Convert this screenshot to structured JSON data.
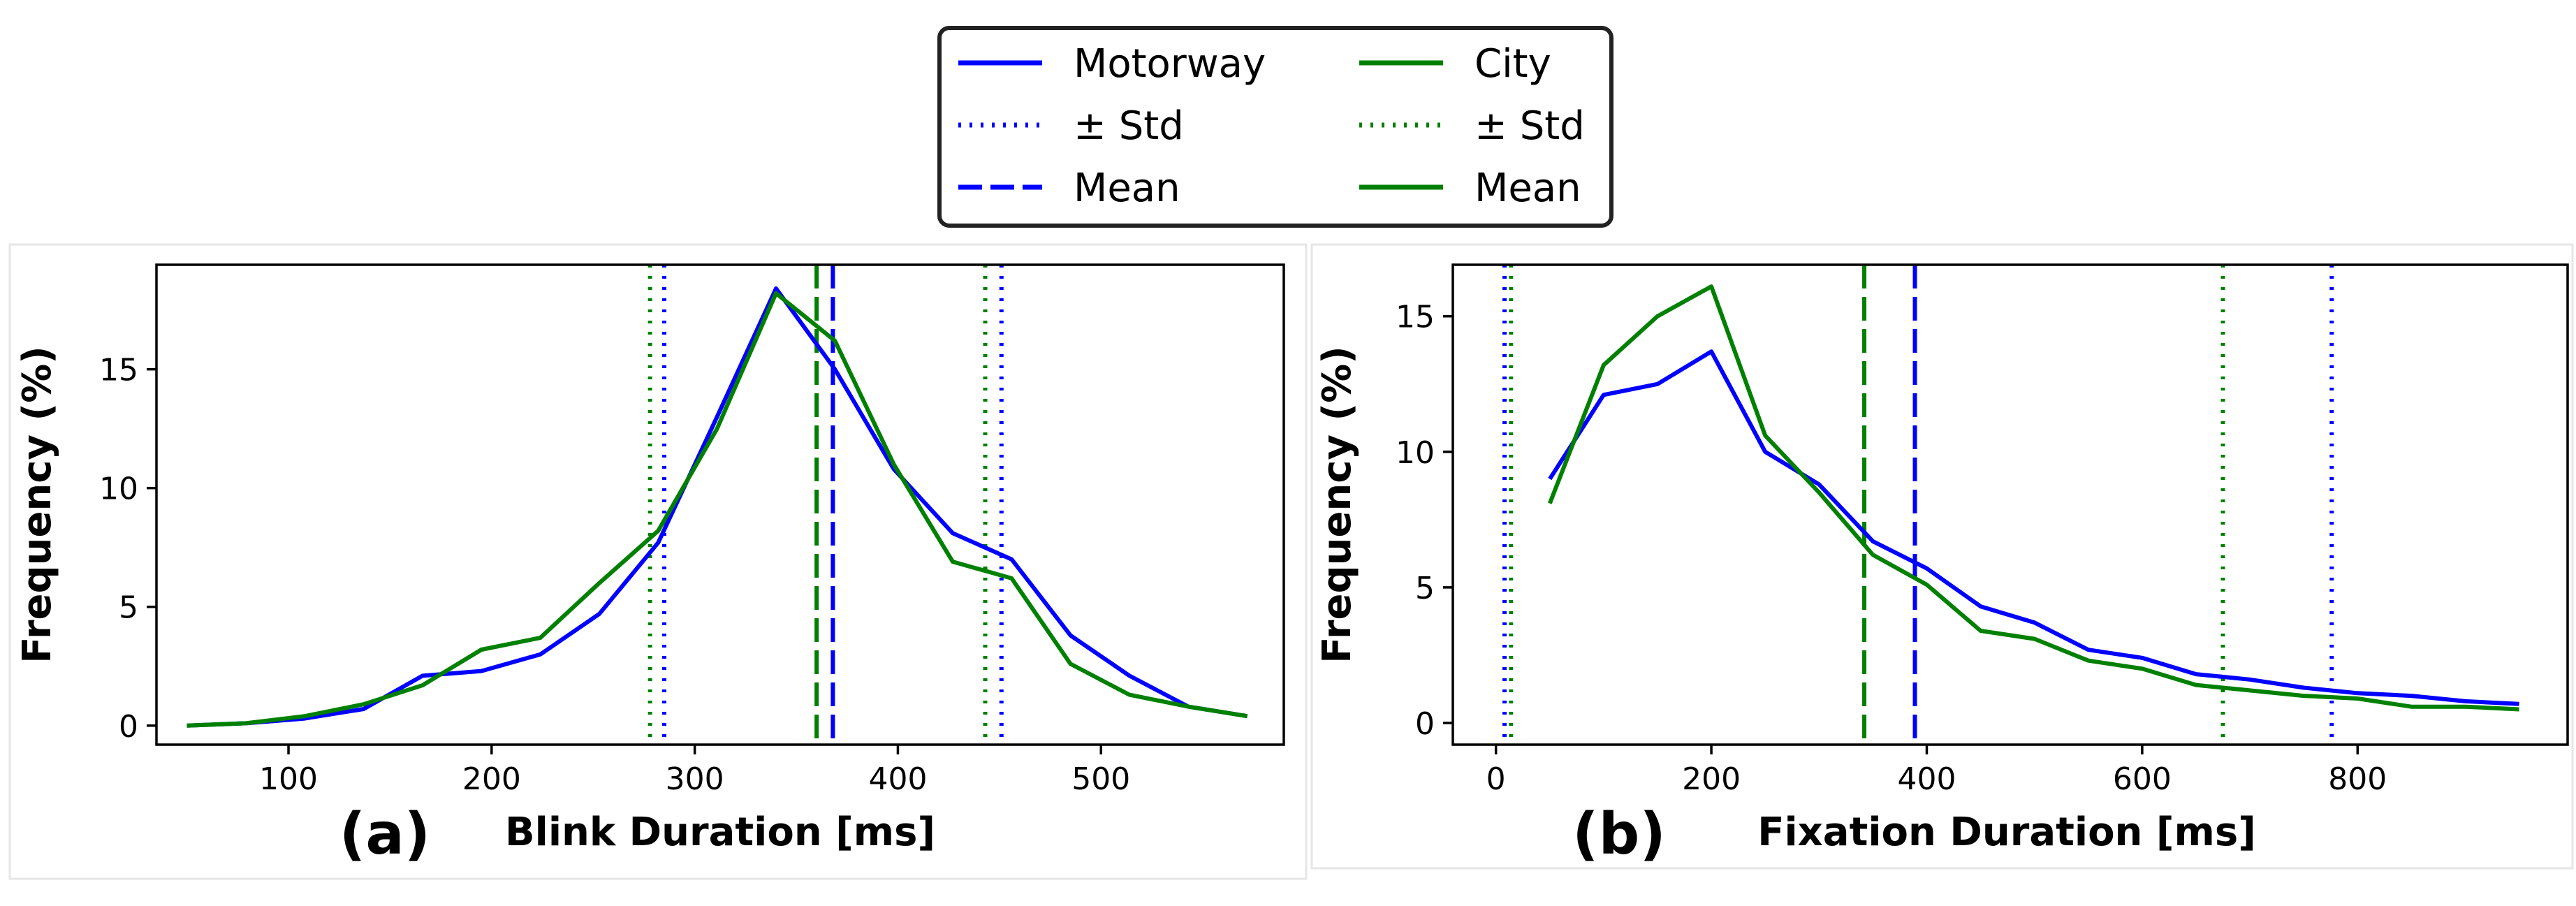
{
  "legend": {
    "entries": [
      {
        "label": "Motorway",
        "color": "#0000ff",
        "style": "solid"
      },
      {
        "label": "City",
        "color": "#008000",
        "style": "solid"
      },
      {
        "label": "± Std",
        "color": "#0000ff",
        "style": "dotted"
      },
      {
        "label": "± Std",
        "color": "#008000",
        "style": "dotted"
      },
      {
        "label": "Mean",
        "color": "#0000ff",
        "style": "dashed"
      },
      {
        "label": "Mean",
        "color": "#008000",
        "style": "solid"
      }
    ]
  },
  "chart_data": [
    {
      "type": "line",
      "panel_label": "(a)",
      "xlabel": "Blink Duration [ms]",
      "ylabel": "Frequency (%)",
      "xlim": [
        35,
        590
      ],
      "ylim": [
        -0.8,
        19.4
      ],
      "xticks": [
        100,
        200,
        300,
        400,
        500
      ],
      "yticks": [
        0,
        5,
        10,
        15
      ],
      "series": [
        {
          "name": "Motorway",
          "color": "#0000ff",
          "x": [
            50,
            79,
            108,
            137,
            166,
            195,
            224,
            253,
            282,
            311,
            340,
            369,
            398,
            427,
            456,
            485,
            514,
            543,
            572
          ],
          "y": [
            0.0,
            0.1,
            0.3,
            0.7,
            2.1,
            2.3,
            3.0,
            4.7,
            7.7,
            13.0,
            18.4,
            15.0,
            10.8,
            8.1,
            7.0,
            3.8,
            2.1,
            0.8,
            0.4
          ]
        },
        {
          "name": "City",
          "color": "#008000",
          "x": [
            50,
            79,
            108,
            137,
            166,
            195,
            224,
            253,
            282,
            311,
            340,
            369,
            398,
            427,
            456,
            485,
            514,
            543,
            572
          ],
          "y": [
            0.0,
            0.1,
            0.4,
            0.9,
            1.7,
            3.2,
            3.7,
            6.0,
            8.2,
            12.5,
            18.2,
            16.2,
            11.0,
            6.9,
            6.2,
            2.6,
            1.3,
            0.8,
            0.4
          ]
        }
      ],
      "vlines": [
        {
          "x": 368,
          "color": "#0000ff",
          "style": "dashed"
        },
        {
          "x": 285,
          "color": "#0000ff",
          "style": "dotted"
        },
        {
          "x": 451,
          "color": "#0000ff",
          "style": "dotted"
        },
        {
          "x": 360,
          "color": "#008000",
          "style": "dashed"
        },
        {
          "x": 278,
          "color": "#008000",
          "style": "dotted"
        },
        {
          "x": 443,
          "color": "#008000",
          "style": "dotted"
        }
      ]
    },
    {
      "type": "line",
      "panel_label": "(b)",
      "xlabel": "Fixation Duration [ms]",
      "ylabel": "Frequency (%)",
      "xlim": [
        -40,
        995
      ],
      "ylim": [
        -0.8,
        16.9
      ],
      "xticks": [
        0,
        200,
        400,
        600,
        800
      ],
      "yticks": [
        0,
        5,
        10,
        15
      ],
      "series": [
        {
          "name": "Motorway",
          "color": "#0000ff",
          "x": [
            50,
            100,
            150,
            200,
            250,
            300,
            350,
            400,
            450,
            500,
            550,
            600,
            650,
            700,
            750,
            800,
            850,
            900,
            950
          ],
          "y": [
            9.0,
            12.1,
            12.5,
            13.7,
            10.0,
            8.8,
            6.7,
            5.7,
            4.3,
            3.7,
            2.7,
            2.4,
            1.8,
            1.6,
            1.3,
            1.1,
            1.0,
            0.8,
            0.7
          ]
        },
        {
          "name": "City",
          "color": "#008000",
          "x": [
            50,
            100,
            150,
            200,
            250,
            300,
            350,
            400,
            450,
            500,
            550,
            600,
            650,
            700,
            750,
            800,
            850,
            900,
            950
          ],
          "y": [
            8.1,
            13.2,
            15.0,
            16.1,
            10.6,
            8.5,
            6.2,
            5.1,
            3.4,
            3.1,
            2.3,
            2.0,
            1.4,
            1.2,
            1.0,
            0.9,
            0.6,
            0.6,
            0.5
          ]
        }
      ],
      "vlines": [
        {
          "x": 389,
          "color": "#0000ff",
          "style": "dashed"
        },
        {
          "x": 8,
          "color": "#0000ff",
          "style": "dotted"
        },
        {
          "x": 776,
          "color": "#0000ff",
          "style": "dotted"
        },
        {
          "x": 342,
          "color": "#008000",
          "style": "dashed"
        },
        {
          "x": 14,
          "color": "#008000",
          "style": "dotted"
        },
        {
          "x": 675,
          "color": "#008000",
          "style": "dotted"
        }
      ]
    }
  ]
}
